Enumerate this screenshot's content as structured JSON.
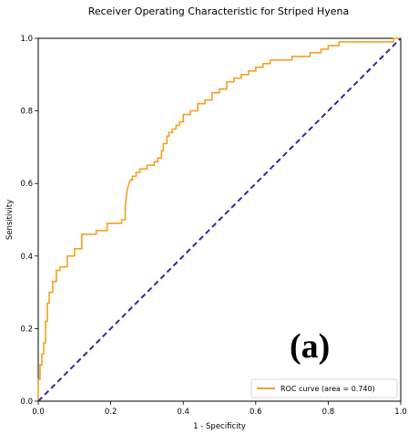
{
  "panel_label": "(a)",
  "chart_data": {
    "type": "line",
    "title": "Receiver Operating Characteristic for Striped Hyena",
    "xlabel": "1 - Specificity",
    "ylabel": "Sensitivity",
    "xlim": [
      0.0,
      1.0
    ],
    "ylim": [
      0.0,
      1.0
    ],
    "xticks": [
      "0.0",
      "0.2",
      "0.4",
      "0.6",
      "0.8",
      "1.0"
    ],
    "yticks": [
      "0.0",
      "0.2",
      "0.4",
      "0.6",
      "0.8",
      "1.0"
    ],
    "legend_position": "lower-right",
    "grid": false,
    "series": [
      {
        "name": "ROC curve (area = 0.740)",
        "color": "#f5a020",
        "style": "solid",
        "x": [
          0.0,
          0.0,
          0.005,
          0.005,
          0.01,
          0.01,
          0.015,
          0.015,
          0.02,
          0.02,
          0.025,
          0.025,
          0.03,
          0.03,
          0.04,
          0.04,
          0.05,
          0.05,
          0.06,
          0.06,
          0.08,
          0.08,
          0.1,
          0.1,
          0.12,
          0.12,
          0.16,
          0.16,
          0.19,
          0.19,
          0.23,
          0.23,
          0.24,
          0.24,
          0.245,
          0.25,
          0.255,
          0.26,
          0.26,
          0.27,
          0.27,
          0.28,
          0.28,
          0.3,
          0.3,
          0.32,
          0.32,
          0.33,
          0.33,
          0.34,
          0.34,
          0.345,
          0.345,
          0.355,
          0.355,
          0.36,
          0.36,
          0.37,
          0.37,
          0.38,
          0.38,
          0.39,
          0.39,
          0.4,
          0.4,
          0.42,
          0.42,
          0.44,
          0.44,
          0.46,
          0.46,
          0.48,
          0.48,
          0.5,
          0.5,
          0.52,
          0.52,
          0.54,
          0.54,
          0.56,
          0.56,
          0.58,
          0.58,
          0.6,
          0.6,
          0.62,
          0.62,
          0.64,
          0.64,
          0.66,
          0.66,
          0.7,
          0.7,
          0.75,
          0.75,
          0.78,
          0.78,
          0.8,
          0.8,
          0.83,
          0.83,
          0.98,
          0.98,
          1.0
        ],
        "y": [
          0.0,
          0.06,
          0.06,
          0.1,
          0.1,
          0.13,
          0.13,
          0.16,
          0.16,
          0.22,
          0.22,
          0.27,
          0.27,
          0.3,
          0.3,
          0.33,
          0.33,
          0.36,
          0.36,
          0.37,
          0.37,
          0.4,
          0.4,
          0.42,
          0.42,
          0.46,
          0.46,
          0.47,
          0.47,
          0.49,
          0.49,
          0.5,
          0.5,
          0.54,
          0.58,
          0.6,
          0.61,
          0.61,
          0.62,
          0.62,
          0.63,
          0.63,
          0.64,
          0.64,
          0.65,
          0.65,
          0.66,
          0.66,
          0.67,
          0.67,
          0.69,
          0.69,
          0.71,
          0.71,
          0.73,
          0.73,
          0.74,
          0.74,
          0.75,
          0.75,
          0.76,
          0.76,
          0.77,
          0.77,
          0.79,
          0.79,
          0.8,
          0.8,
          0.82,
          0.82,
          0.83,
          0.83,
          0.85,
          0.85,
          0.86,
          0.86,
          0.88,
          0.88,
          0.89,
          0.89,
          0.9,
          0.9,
          0.91,
          0.91,
          0.92,
          0.92,
          0.93,
          0.93,
          0.94,
          0.94,
          0.94,
          0.94,
          0.95,
          0.95,
          0.96,
          0.96,
          0.97,
          0.97,
          0.98,
          0.98,
          0.99,
          0.99,
          1.0,
          1.0
        ]
      },
      {
        "name": "",
        "color": "#2b2ba0",
        "style": "dashed",
        "x": [
          0.0,
          1.0
        ],
        "y": [
          0.0,
          1.0
        ]
      }
    ]
  }
}
